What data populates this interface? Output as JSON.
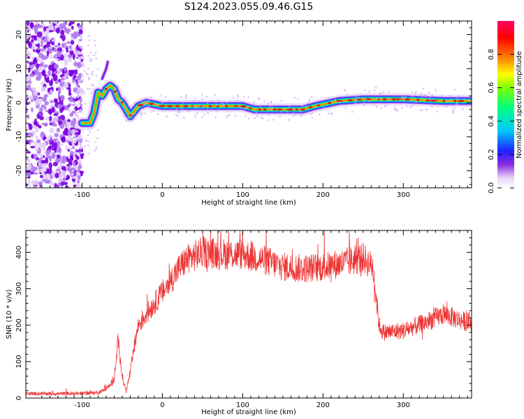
{
  "title": "S124.2023.055.09.46.G15",
  "chart_data": [
    {
      "type": "heatmap",
      "xlabel": "Height of straight line (km)",
      "ylabel": "Frequency (Hz)",
      "xlim": [
        -170,
        385
      ],
      "ylim": [
        -25,
        24
      ],
      "xticks": [
        -100,
        0,
        100,
        200,
        300
      ],
      "yticks": [
        -20,
        -10,
        0,
        10,
        20
      ],
      "colorbar": {
        "label": "Normalized spectral amplitude",
        "range": [
          0,
          1
        ],
        "ticks": [
          "0.0",
          "0.2",
          "0.4",
          "0.6",
          "0.8"
        ],
        "colormap": "rainbow-purple-to-red"
      },
      "noise_region_x": [
        -170,
        -100
      ],
      "ridge": {
        "x": [
          -100,
          -90,
          -85,
          -80,
          -75,
          -70,
          -65,
          -60,
          -55,
          -50,
          -45,
          -40,
          -30,
          -20,
          0,
          50,
          100,
          115,
          150,
          175,
          190,
          200,
          220,
          250,
          300,
          350,
          385
        ],
        "y": [
          -6,
          -6,
          -3,
          3,
          2,
          4,
          5,
          4,
          1,
          0,
          -2,
          -4,
          -1,
          0,
          -1,
          -1,
          -1,
          -2,
          -2,
          -2,
          -1,
          -0.5,
          0.5,
          1,
          1,
          0.5,
          0.5
        ]
      },
      "spur": {
        "x": [
          -75,
          -70,
          -68
        ],
        "y": [
          7,
          10,
          12
        ]
      }
    },
    {
      "type": "line",
      "xlabel": "Height of straight line (km)",
      "ylabel": "SNR (10 * v/v)",
      "xlim": [
        -170,
        385
      ],
      "ylim": [
        0,
        460
      ],
      "xticks": [
        -100,
        0,
        100,
        200,
        300
      ],
      "yticks": [
        0,
        100,
        200,
        300,
        400
      ],
      "color": "#ee3333",
      "series": [
        {
          "x": [
            -170,
            -140,
            -110,
            -80,
            -70,
            -60,
            -55,
            -50,
            -45,
            -40,
            -35,
            -30,
            -20,
            -10,
            0,
            10,
            20,
            30,
            50,
            75,
            100,
            125,
            150,
            175,
            200,
            225,
            250,
            262,
            270,
            275,
            300,
            325,
            350,
            370,
            385
          ],
          "y": [
            12,
            12,
            12,
            15,
            25,
            50,
            160,
            60,
            20,
            70,
            140,
            200,
            230,
            260,
            290,
            320,
            355,
            380,
            400,
            395,
            395,
            380,
            360,
            355,
            360,
            370,
            385,
            360,
            200,
            180,
            185,
            205,
            230,
            215,
            205
          ]
        }
      ]
    }
  ]
}
